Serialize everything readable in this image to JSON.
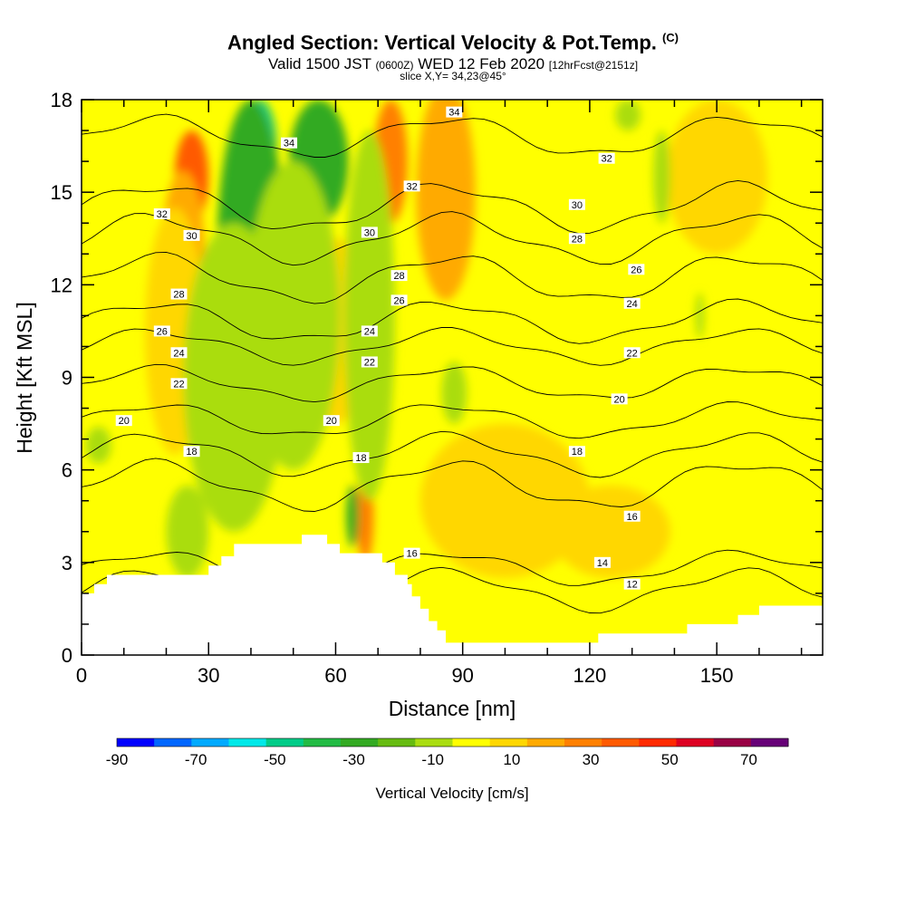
{
  "header": {
    "title": "Angled Section: Vertical Velocity & Pot.Temp.",
    "title_tag": "(C)",
    "valid_prefix": "Valid 1500 JST",
    "valid_utc": "(0600Z)",
    "valid_date": "WED 12 Feb 2020",
    "forecast": "[12hrFcst@2151z]",
    "slice": "slice X,Y= 34,23@45°"
  },
  "chart_data": {
    "type": "heatmap",
    "title": "Angled Section: Vertical Velocity & Pot.Temp.",
    "xlabel": "Distance [nm]",
    "ylabel": "Height [Kft MSL]",
    "xlim": [
      0,
      175
    ],
    "ylim": [
      0,
      18
    ],
    "xticks": [
      0,
      30,
      60,
      90,
      120,
      150
    ],
    "yticks": [
      0,
      3,
      6,
      9,
      12,
      15,
      18
    ],
    "colorbar": {
      "title": "Vertical Velocity [cm/s]",
      "labels": [
        "-90",
        "-70",
        "-50",
        "-30",
        "-10",
        "10",
        "30",
        "50",
        "70"
      ],
      "bounds": [
        -90,
        -80,
        -70,
        -60,
        -50,
        -40,
        -30,
        -20,
        -10,
        0,
        10,
        20,
        30,
        40,
        50,
        60,
        70,
        80
      ],
      "colors": [
        "#0000ff",
        "#0066ff",
        "#00aaff",
        "#00e8e8",
        "#00cc88",
        "#22bb44",
        "#33aa22",
        "#66bb11",
        "#aadd11",
        "#ffff00",
        "#ffd700",
        "#ffaa00",
        "#ff8000",
        "#ff5a00",
        "#ff2a00",
        "#dd0022",
        "#990044",
        "#660077"
      ]
    },
    "background_level": "#ffff00",
    "updrafts": [
      {
        "x": 26,
        "y": 15.5,
        "w": 4,
        "h": 3.0,
        "value": 45
      },
      {
        "x": 24,
        "y": 13.2,
        "w": 5,
        "h": 5.0,
        "value": 25
      },
      {
        "x": 22,
        "y": 10.5,
        "w": 7,
        "h": 8.0,
        "value": 15
      },
      {
        "x": 73,
        "y": 16.0,
        "w": 4,
        "h": 4.0,
        "value": 30
      },
      {
        "x": 87,
        "y": 16.0,
        "w": 4,
        "h": 4.0,
        "value": 45
      },
      {
        "x": 86,
        "y": 15.0,
        "w": 7,
        "h": 7.0,
        "value": 25
      },
      {
        "x": 60,
        "y": 10.5,
        "w": 8,
        "h": 6.0,
        "value": 15
      },
      {
        "x": 67,
        "y": 4.5,
        "w": 2,
        "h": 3.0,
        "value": 30
      },
      {
        "x": 100,
        "y": 5.0,
        "w": 20,
        "h": 5.0,
        "value": 10
      },
      {
        "x": 150,
        "y": 15.5,
        "w": 12,
        "h": 5.0,
        "value": 10
      },
      {
        "x": 125,
        "y": 4.0,
        "w": 14,
        "h": 3.0,
        "value": 15
      }
    ],
    "downdrafts": [
      {
        "x": 42,
        "y": 16.5,
        "w": 4,
        "h": 3.0,
        "value": -50
      },
      {
        "x": 40,
        "y": 13.0,
        "w": 8,
        "h": 10.0,
        "value": -30
      },
      {
        "x": 36,
        "y": 9.0,
        "w": 12,
        "h": 10.0,
        "value": -10
      },
      {
        "x": 56,
        "y": 16.0,
        "w": 7,
        "h": 4.0,
        "value": -30
      },
      {
        "x": 50,
        "y": 11.0,
        "w": 11,
        "h": 10.0,
        "value": -10
      },
      {
        "x": 68,
        "y": 11.0,
        "w": 6,
        "h": 12.0,
        "value": -10
      },
      {
        "x": 88,
        "y": 8.5,
        "w": 3,
        "h": 2.0,
        "value": -10
      },
      {
        "x": 4,
        "y": 6.8,
        "w": 3,
        "h": 1.2,
        "value": -10
      },
      {
        "x": 129,
        "y": 17.5,
        "w": 3,
        "h": 1.0,
        "value": -10
      },
      {
        "x": 137,
        "y": 15.5,
        "w": 2,
        "h": 3.0,
        "value": -10
      },
      {
        "x": 146,
        "y": 11.0,
        "w": 1,
        "h": 1.5,
        "value": -10
      },
      {
        "x": 25,
        "y": 4.0,
        "w": 5,
        "h": 3.0,
        "value": -10
      },
      {
        "x": 64,
        "y": 4.5,
        "w": 1.5,
        "h": 2.0,
        "value": -30
      }
    ],
    "isentropes": [
      {
        "theta": 12,
        "base": 2.1,
        "wave": 0.6
      },
      {
        "theta": 14,
        "base": 2.8,
        "wave": 0.5
      },
      {
        "theta": 16,
        "base": 5.5,
        "wave": 0.7
      },
      {
        "theta": 18,
        "base": 6.5,
        "wave": 0.6
      },
      {
        "theta": 20,
        "base": 7.6,
        "wave": 0.5
      },
      {
        "theta": 22,
        "base": 8.8,
        "wave": 0.5
      },
      {
        "theta": 24,
        "base": 10.0,
        "wave": 0.5
      },
      {
        "theta": 26,
        "base": 10.8,
        "wave": 0.6
      },
      {
        "theta": 28,
        "base": 12.2,
        "wave": 0.7
      },
      {
        "theta": 30,
        "base": 13.5,
        "wave": 0.7
      },
      {
        "theta": 32,
        "base": 14.5,
        "wave": 0.7
      },
      {
        "theta": 34,
        "base": 16.8,
        "wave": 0.6
      }
    ],
    "contour_labels": [
      {
        "text": "34",
        "x": 49,
        "y": 16.6
      },
      {
        "text": "34",
        "x": 88,
        "y": 17.6
      },
      {
        "text": "32",
        "x": 19,
        "y": 14.3
      },
      {
        "text": "32",
        "x": 78,
        "y": 15.2
      },
      {
        "text": "32",
        "x": 124,
        "y": 16.1
      },
      {
        "text": "30",
        "x": 26,
        "y": 13.6
      },
      {
        "text": "30",
        "x": 68,
        "y": 13.7
      },
      {
        "text": "30",
        "x": 117,
        "y": 14.6
      },
      {
        "text": "28",
        "x": 23,
        "y": 11.7
      },
      {
        "text": "28",
        "x": 75,
        "y": 12.3
      },
      {
        "text": "28",
        "x": 117,
        "y": 13.5
      },
      {
        "text": "26",
        "x": 19,
        "y": 10.5
      },
      {
        "text": "26",
        "x": 75,
        "y": 11.5
      },
      {
        "text": "26",
        "x": 131,
        "y": 12.5
      },
      {
        "text": "24",
        "x": 23,
        "y": 9.8
      },
      {
        "text": "24",
        "x": 68,
        "y": 10.5
      },
      {
        "text": "24",
        "x": 130,
        "y": 11.4
      },
      {
        "text": "22",
        "x": 23,
        "y": 8.8
      },
      {
        "text": "22",
        "x": 68,
        "y": 9.5
      },
      {
        "text": "22",
        "x": 130,
        "y": 9.8
      },
      {
        "text": "20",
        "x": 10,
        "y": 7.6
      },
      {
        "text": "20",
        "x": 59,
        "y": 7.6
      },
      {
        "text": "20",
        "x": 127,
        "y": 8.3
      },
      {
        "text": "18",
        "x": 26,
        "y": 6.6
      },
      {
        "text": "18",
        "x": 66,
        "y": 6.4
      },
      {
        "text": "18",
        "x": 117,
        "y": 6.6
      },
      {
        "text": "16",
        "x": 130,
        "y": 4.5
      },
      {
        "text": "16",
        "x": 78,
        "y": 3.3
      },
      {
        "text": "14",
        "x": 123,
        "y": 3.0
      },
      {
        "text": "12",
        "x": 130,
        "y": 2.3
      }
    ],
    "terrain": [
      [
        0,
        2.0
      ],
      [
        3,
        2.0
      ],
      [
        3,
        2.3
      ],
      [
        6,
        2.3
      ],
      [
        6,
        2.6
      ],
      [
        30,
        2.6
      ],
      [
        30,
        2.9
      ],
      [
        33,
        2.9
      ],
      [
        33,
        3.2
      ],
      [
        36,
        3.2
      ],
      [
        36,
        3.6
      ],
      [
        52,
        3.6
      ],
      [
        52,
        3.9
      ],
      [
        58,
        3.9
      ],
      [
        58,
        3.6
      ],
      [
        61,
        3.6
      ],
      [
        61,
        3.3
      ],
      [
        71,
        3.3
      ],
      [
        71,
        3.0
      ],
      [
        74,
        3.0
      ],
      [
        74,
        2.6
      ],
      [
        77,
        2.6
      ],
      [
        77,
        2.3
      ],
      [
        78,
        2.3
      ],
      [
        78,
        1.9
      ],
      [
        80,
        1.9
      ],
      [
        80,
        1.5
      ],
      [
        82,
        1.5
      ],
      [
        82,
        1.1
      ],
      [
        84,
        1.1
      ],
      [
        84,
        0.8
      ],
      [
        86,
        0.8
      ],
      [
        86,
        0.4
      ],
      [
        122,
        0.4
      ],
      [
        122,
        0.7
      ],
      [
        143,
        0.7
      ],
      [
        143,
        1.0
      ],
      [
        155,
        1.0
      ],
      [
        155,
        1.3
      ],
      [
        160,
        1.3
      ],
      [
        160,
        1.6
      ],
      [
        175,
        1.6
      ],
      [
        175,
        0
      ],
      [
        0,
        0
      ]
    ]
  }
}
